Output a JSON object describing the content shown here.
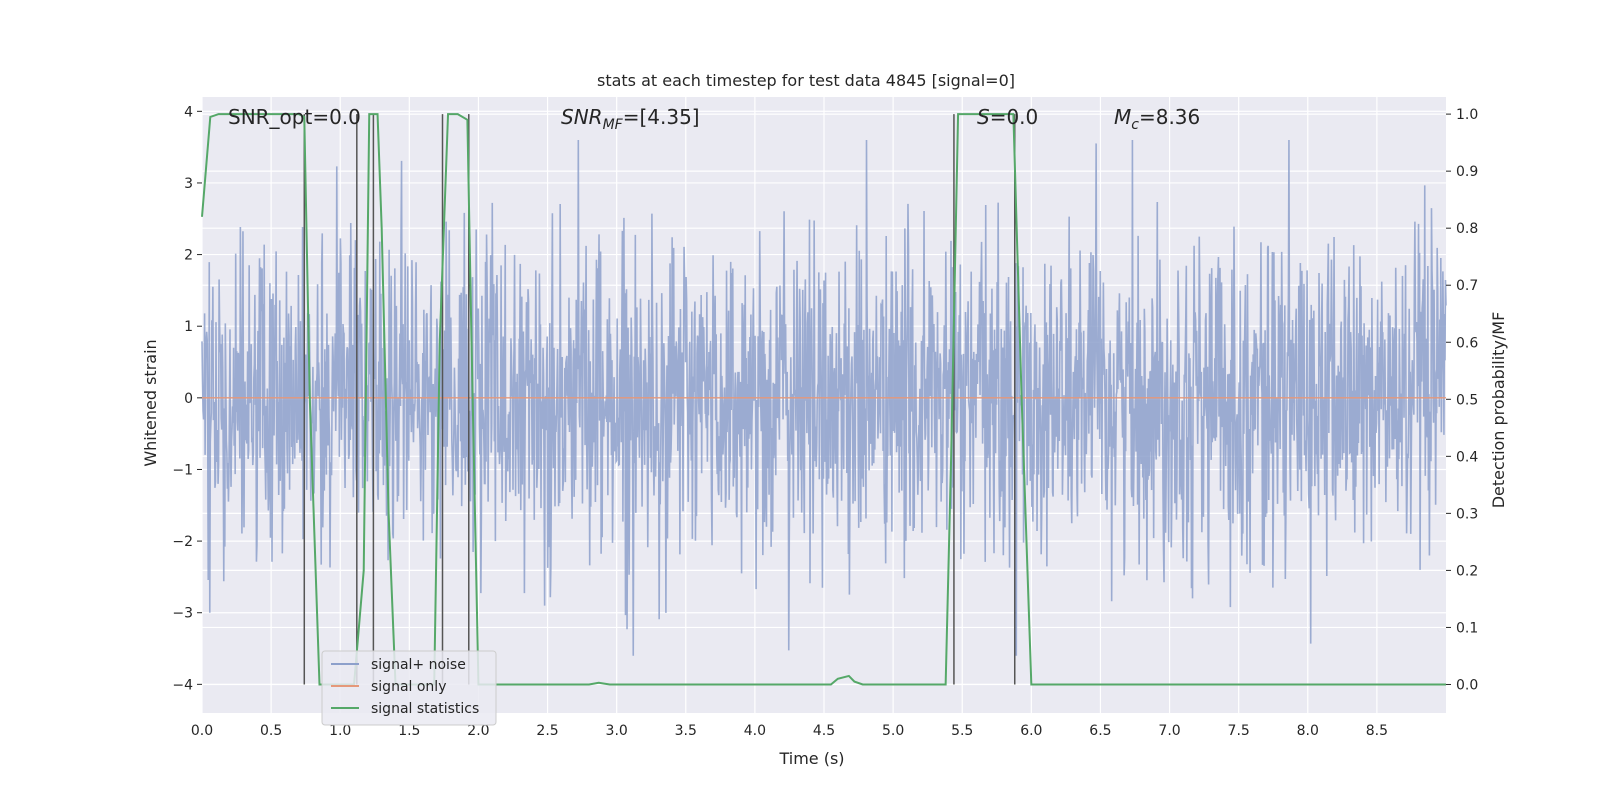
{
  "chart_data": {
    "type": "line",
    "title": "stats at each timestep for test data 4845 [signal=0]",
    "xlabel": "Time (s)",
    "ylabel_left": "Whitened strain",
    "ylabel_right": "Detection probability/MF",
    "xlim": [
      0.0,
      9.0
    ],
    "ylim_left": [
      -4.4,
      4.2
    ],
    "ylim_right": [
      -0.05,
      1.03
    ],
    "xticks": [
      0.0,
      0.5,
      1.0,
      1.5,
      2.0,
      2.5,
      3.0,
      3.5,
      4.0,
      4.5,
      5.0,
      5.5,
      6.0,
      6.5,
      7.0,
      7.5,
      8.0,
      8.5
    ],
    "xtick_labels": [
      "0.0",
      "0.5",
      "1.0",
      "1.5",
      "2.0",
      "2.5",
      "3.0",
      "3.5",
      "4.0",
      "4.5",
      "5.0",
      "5.5",
      "6.0",
      "6.5",
      "7.0",
      "7.5",
      "8.0",
      "8.5"
    ],
    "yticks_left": [
      -4,
      -3,
      -2,
      -1,
      0,
      1,
      2,
      3,
      4
    ],
    "ytick_labels_left": [
      "−4",
      "−3",
      "−2",
      "−1",
      "0",
      "1",
      "2",
      "3",
      "4"
    ],
    "yticks_right": [
      0.0,
      0.1,
      0.2,
      0.3,
      0.4,
      0.5,
      0.6,
      0.7,
      0.8,
      0.9,
      1.0
    ],
    "ytick_labels_right": [
      "0.0",
      "0.1",
      "0.2",
      "0.3",
      "0.4",
      "0.5",
      "0.6",
      "0.7",
      "0.8",
      "0.9",
      "1.0"
    ],
    "grid": true,
    "legend_position": "lower-left",
    "annotations": {
      "snr_opt": "SNR_opt=0.0",
      "snr_mf_name": "SNR",
      "snr_mf_sub": "MF",
      "snr_mf_value": "=[4.35]",
      "s_name": "S",
      "s_value": "=0.0",
      "mc_name": "M",
      "mc_sub": "c",
      "mc_value": "=8.36"
    },
    "series": [
      {
        "name": "signal+ noise",
        "axis": "left",
        "color": "#8da0cb",
        "noise_std": 0.95,
        "noise_envelope_max": 3.6,
        "x_range": [
          0.0,
          9.0
        ]
      },
      {
        "name": "signal only",
        "axis": "left",
        "color": "#e5987a",
        "x": [
          0.0,
          9.0
        ],
        "y": [
          0.0,
          0.0
        ]
      },
      {
        "name": "signal statistics",
        "axis": "right",
        "color": "#55a868",
        "x": [
          0.0,
          0.06,
          0.12,
          0.2,
          0.5,
          0.7,
          0.74,
          0.78,
          0.85,
          0.9,
          1.0,
          1.05,
          1.1,
          1.17,
          1.21,
          1.27,
          1.3,
          1.35,
          1.4,
          1.5,
          1.6,
          1.68,
          1.72,
          1.78,
          1.8,
          1.85,
          1.92,
          1.95,
          2.0,
          2.05,
          2.1,
          2.5,
          2.8,
          2.87,
          2.95,
          3.1,
          4.0,
          4.55,
          4.6,
          4.68,
          4.72,
          4.78,
          5.0,
          5.38,
          5.42,
          5.47,
          5.51,
          5.87,
          5.93,
          6.0,
          6.5,
          9.0
        ],
        "y": [
          0.82,
          0.995,
          1.0,
          1.0,
          1.0,
          1.0,
          0.995,
          0.5,
          0.0,
          0.0,
          0.0,
          0.0,
          0.0,
          0.2,
          1.0,
          1.0,
          0.8,
          0.3,
          0.0,
          0.0,
          0.0,
          0.0,
          0.6,
          1.0,
          1.0,
          1.0,
          0.99,
          0.6,
          0.0,
          0.0,
          0.0,
          0.0,
          0.0,
          0.003,
          0.0,
          0.0,
          0.0,
          0.0,
          0.01,
          0.015,
          0.005,
          0.0,
          0.0,
          0.0,
          0.4,
          1.0,
          1.0,
          1.0,
          0.5,
          0.0,
          0.0,
          0.0
        ]
      }
    ],
    "vertical_lines_x": [
      0.74,
      1.12,
      1.24,
      1.74,
      1.93,
      5.44,
      5.88
    ]
  }
}
